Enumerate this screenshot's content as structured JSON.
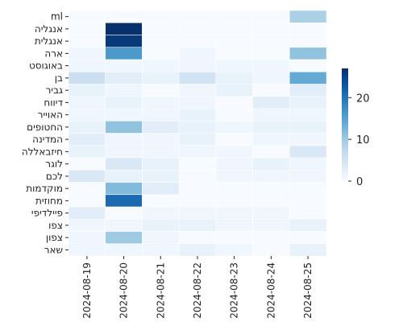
{
  "chart_data": {
    "type": "heatmap",
    "title": "",
    "xlabel": "",
    "ylabel": "",
    "x_categories": [
      "2024-08-19",
      "2024-08-20",
      "2024-08-21",
      "2024-08-22",
      "2024-08-23",
      "2024-08-24",
      "2024-08-25"
    ],
    "y_categories": [
      "ml",
      "אנגליה",
      "אנגלית",
      "ארה",
      "באוגוסט",
      "בן",
      "גביר",
      "דיווח",
      "האוייר",
      "החטופים",
      "המדינה",
      "חיזבאללה",
      "לוגר",
      "לכם",
      "מוקדמות",
      "מחוזית",
      "פיילדיפי",
      "צפו",
      "צפון",
      "שאר"
    ],
    "values": [
      [
        0,
        0,
        0,
        0,
        0,
        0,
        9
      ],
      [
        0,
        27,
        0,
        0,
        0,
        0,
        0
      ],
      [
        0,
        26,
        0,
        0,
        0,
        0,
        0
      ],
      [
        1,
        16,
        0,
        1,
        0,
        0,
        11
      ],
      [
        1,
        1,
        1,
        1,
        1,
        1,
        0
      ],
      [
        6,
        3,
        2,
        5,
        2,
        1,
        14
      ],
      [
        2,
        1,
        0,
        1,
        2,
        0,
        3
      ],
      [
        1,
        2,
        1,
        1,
        0,
        3,
        2
      ],
      [
        1,
        1,
        1,
        2,
        0,
        1,
        1
      ],
      [
        2,
        11,
        3,
        2,
        1,
        2,
        2
      ],
      [
        3,
        1,
        1,
        2,
        0,
        1,
        1
      ],
      [
        2,
        1,
        1,
        1,
        1,
        0,
        4
      ],
      [
        0,
        4,
        2,
        0,
        1,
        2,
        1
      ],
      [
        4,
        2,
        2,
        0,
        1,
        1,
        1
      ],
      [
        0,
        12,
        3,
        0,
        0,
        0,
        0
      ],
      [
        0,
        21,
        0,
        0,
        0,
        0,
        0
      ],
      [
        3,
        0,
        1,
        1,
        1,
        1,
        0
      ],
      [
        1,
        1,
        2,
        2,
        1,
        1,
        2
      ],
      [
        1,
        10,
        1,
        0,
        0,
        0,
        0
      ],
      [
        1,
        1,
        1,
        2,
        1,
        0,
        2
      ]
    ],
    "vmin": 0,
    "vmax": 27,
    "colormap": "Blues",
    "colorbar_ticks": [
      0,
      10,
      20
    ],
    "grid": false
  }
}
